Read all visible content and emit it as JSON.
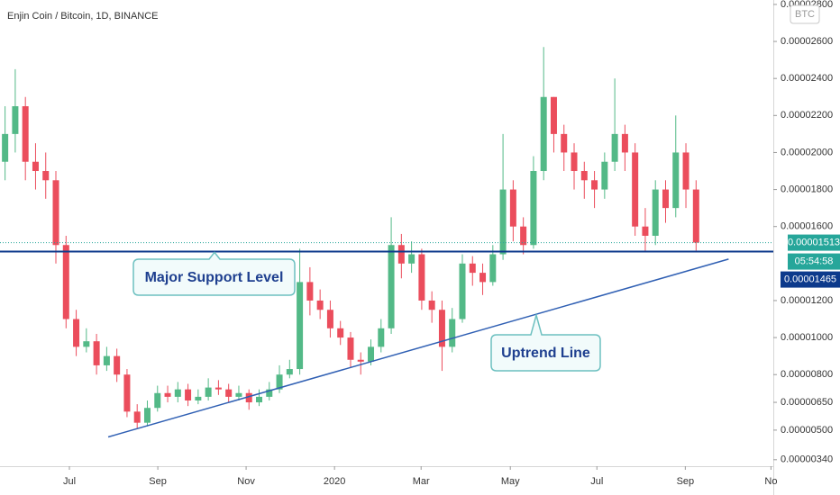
{
  "chart_data": {
    "type": "candlestick",
    "title": "Enjin Coin / Bitcoin, 1D, BINANCE",
    "currency": "BTC",
    "xlim": [
      0,
      76.1
    ],
    "xticks": [
      {
        "value": 6.83,
        "label": "Jul"
      },
      {
        "value": 15.53,
        "label": "Sep"
      },
      {
        "value": 24.22,
        "label": "Nov"
      },
      {
        "value": 32.92,
        "label": "2020"
      },
      {
        "value": 41.44,
        "label": "Mar"
      },
      {
        "value": 50.22,
        "label": "May"
      },
      {
        "value": 58.74,
        "label": "Jul"
      },
      {
        "value": 67.44,
        "label": "Sep"
      },
      {
        "value": 75.87,
        "label": "No"
      }
    ],
    "ylim": [
      3.05e-06,
      2.824e-05
    ],
    "yticks": [
      {
        "value": 3.4e-06,
        "label": "0.00000340"
      },
      {
        "value": 5e-06,
        "label": "0.00000500"
      },
      {
        "value": 6.5e-06,
        "label": "0.00000650"
      },
      {
        "value": 8e-06,
        "label": "0.00000800"
      },
      {
        "value": 1e-05,
        "label": "0.00001000"
      },
      {
        "value": 1.2e-05,
        "label": "0.00001200"
      },
      {
        "value": 1.6e-05,
        "label": "0.00001600"
      },
      {
        "value": 1.8e-05,
        "label": "0.00001800"
      },
      {
        "value": 2e-05,
        "label": "0.00002000"
      },
      {
        "value": 2.2e-05,
        "label": "0.00002200"
      },
      {
        "value": 2.4e-05,
        "label": "0.00002400"
      },
      {
        "value": 2.6e-05,
        "label": "0.00002600"
      },
      {
        "value": 2.8e-05,
        "label": "0.00002800"
      }
    ],
    "up_color": "#53b987",
    "down_color": "#eb4d5c",
    "open": [
      1.95e-05,
      2.1e-05,
      2.25e-05,
      1.95e-05,
      1.9e-05,
      1.85e-05,
      1.5e-05,
      1.1e-05,
      9.5e-06,
      9.8e-06,
      8.5e-06,
      9e-06,
      8e-06,
      6e-06,
      5.4e-06,
      6.2e-06,
      7e-06,
      6.8e-06,
      7.2e-06,
      6.6e-06,
      6.8e-06,
      7.3e-06,
      7.2e-06,
      6.8e-06,
      7e-06,
      6.5e-06,
      6.8e-06,
      7.2e-06,
      8e-06,
      8.3e-06,
      1.3e-05,
      1.2e-05,
      1.15e-05,
      1.05e-05,
      1e-05,
      8.8e-06,
      8.7e-06,
      9.5e-06,
      1.05e-05,
      1.5e-05,
      1.4e-05,
      1.45e-05,
      1.2e-05,
      1.15e-05,
      9.5e-06,
      1.1e-05,
      1.4e-05,
      1.35e-05,
      1.3e-05,
      1.45e-05,
      1.8e-05,
      1.6e-05,
      1.5e-05,
      1.9e-05,
      2.3e-05,
      2.1e-05,
      2e-05,
      1.9e-05,
      1.85e-05,
      1.8e-05,
      1.95e-05,
      2.1e-05,
      2e-05,
      1.6e-05,
      1.55e-05,
      1.8e-05,
      1.7e-05,
      2e-05,
      1.8e-05
    ],
    "high": [
      2.25e-05,
      2.45e-05,
      2.3e-05,
      2.05e-05,
      2e-05,
      1.9e-05,
      1.55e-05,
      1.15e-05,
      1.05e-05,
      1.02e-05,
      9.5e-06,
      9.4e-06,
      8.3e-06,
      6.4e-06,
      6.6e-06,
      7.4e-06,
      7.4e-06,
      7.6e-06,
      7.5e-06,
      7.2e-06,
      7.8e-06,
      7.7e-06,
      7.5e-06,
      7.4e-06,
      7.2e-06,
      7.2e-06,
      7.6e-06,
      8.5e-06,
      8.8e-06,
      1.48e-05,
      1.38e-05,
      1.26e-05,
      1.2e-05,
      1.09e-05,
      1.03e-05,
      9.2e-06,
      9.9e-06,
      1.1e-05,
      1.65e-05,
      1.56e-05,
      1.52e-05,
      1.48e-05,
      1.25e-05,
      1.2e-05,
      1.16e-05,
      1.45e-05,
      1.44e-05,
      1.4e-05,
      1.5e-05,
      2.1e-05,
      1.85e-05,
      1.65e-05,
      1.98e-05,
      2.57e-05,
      2.3e-05,
      2.15e-05,
      2.05e-05,
      1.95e-05,
      1.9e-05,
      2e-05,
      2.4e-05,
      2.15e-05,
      2.05e-05,
      1.7e-05,
      1.85e-05,
      1.85e-05,
      2.2e-05,
      2.05e-05,
      1.85e-05
    ],
    "low": [
      1.85e-05,
      2e-05,
      1.85e-05,
      1.8e-05,
      1.75e-05,
      1.4e-05,
      1.05e-05,
      9e-06,
      9.2e-06,
      8e-06,
      8.2e-06,
      7.6e-06,
      5.7e-06,
      5.1e-06,
      5.2e-06,
      6e-06,
      6.5e-06,
      6.5e-06,
      6.3e-06,
      6.4e-06,
      6.6e-06,
      6.9e-06,
      6.5e-06,
      6.6e-06,
      6.1e-06,
      6.3e-06,
      6.6e-06,
      7e-06,
      7.8e-06,
      8e-06,
      1.12e-05,
      1.1e-05,
      1e-05,
      9.6e-06,
      8.4e-06,
      8e-06,
      8.5e-06,
      9.2e-06,
      1.02e-05,
      1.32e-05,
      1.35e-05,
      1.15e-05,
      1.08e-05,
      8.2e-06,
      9.2e-06,
      1.08e-05,
      1.28e-05,
      1.23e-05,
      1.28e-05,
      1.42e-05,
      1.52e-05,
      1.45e-05,
      1.48e-05,
      1.85e-05,
      2e-05,
      1.9e-05,
      1.8e-05,
      1.75e-05,
      1.7e-05,
      1.75e-05,
      1.9e-05,
      1.9e-05,
      1.55e-05,
      1.46e-05,
      1.5e-05,
      1.62e-05,
      1.65e-05,
      1.7e-05,
      1.47e-05
    ],
    "close": [
      2.1e-05,
      2.25e-05,
      1.95e-05,
      1.9e-05,
      1.85e-05,
      1.5e-05,
      1.1e-05,
      9.5e-06,
      9.8e-06,
      8.5e-06,
      9e-06,
      8e-06,
      6e-06,
      5.4e-06,
      6.2e-06,
      7e-06,
      6.8e-06,
      7.2e-06,
      6.6e-06,
      6.8e-06,
      7.3e-06,
      7.2e-06,
      6.8e-06,
      7e-06,
      6.5e-06,
      6.8e-06,
      7.2e-06,
      8e-06,
      8.3e-06,
      1.3e-05,
      1.2e-05,
      1.15e-05,
      1.05e-05,
      1e-05,
      8.8e-06,
      8.7e-06,
      9.5e-06,
      1.05e-05,
      1.5e-05,
      1.4e-05,
      1.45e-05,
      1.2e-05,
      1.15e-05,
      9.5e-06,
      1.1e-05,
      1.4e-05,
      1.35e-05,
      1.3e-05,
      1.45e-05,
      1.8e-05,
      1.6e-05,
      1.5e-05,
      1.9e-05,
      2.3e-05,
      2.1e-05,
      2e-05,
      1.9e-05,
      1.85e-05,
      1.8e-05,
      1.95e-05,
      2.1e-05,
      2e-05,
      1.6e-05,
      1.55e-05,
      1.8e-05,
      1.7e-05,
      2e-05,
      1.8e-05,
      1.513e-05
    ],
    "last_price": 1.513e-05,
    "last_price_label": "0.00001513",
    "countdown": "05:54:58",
    "support_level": 1.465e-05,
    "support_label": "0.00001465",
    "support_color": "#0d3a8c",
    "trend_line": {
      "start": [
        10.65,
        4.63e-06
      ],
      "end": [
        71.7,
        1.424e-05
      ],
      "color": "#2f5fb3"
    },
    "annotations": [
      "Major Support Level",
      "Uptrend Line"
    ]
  }
}
